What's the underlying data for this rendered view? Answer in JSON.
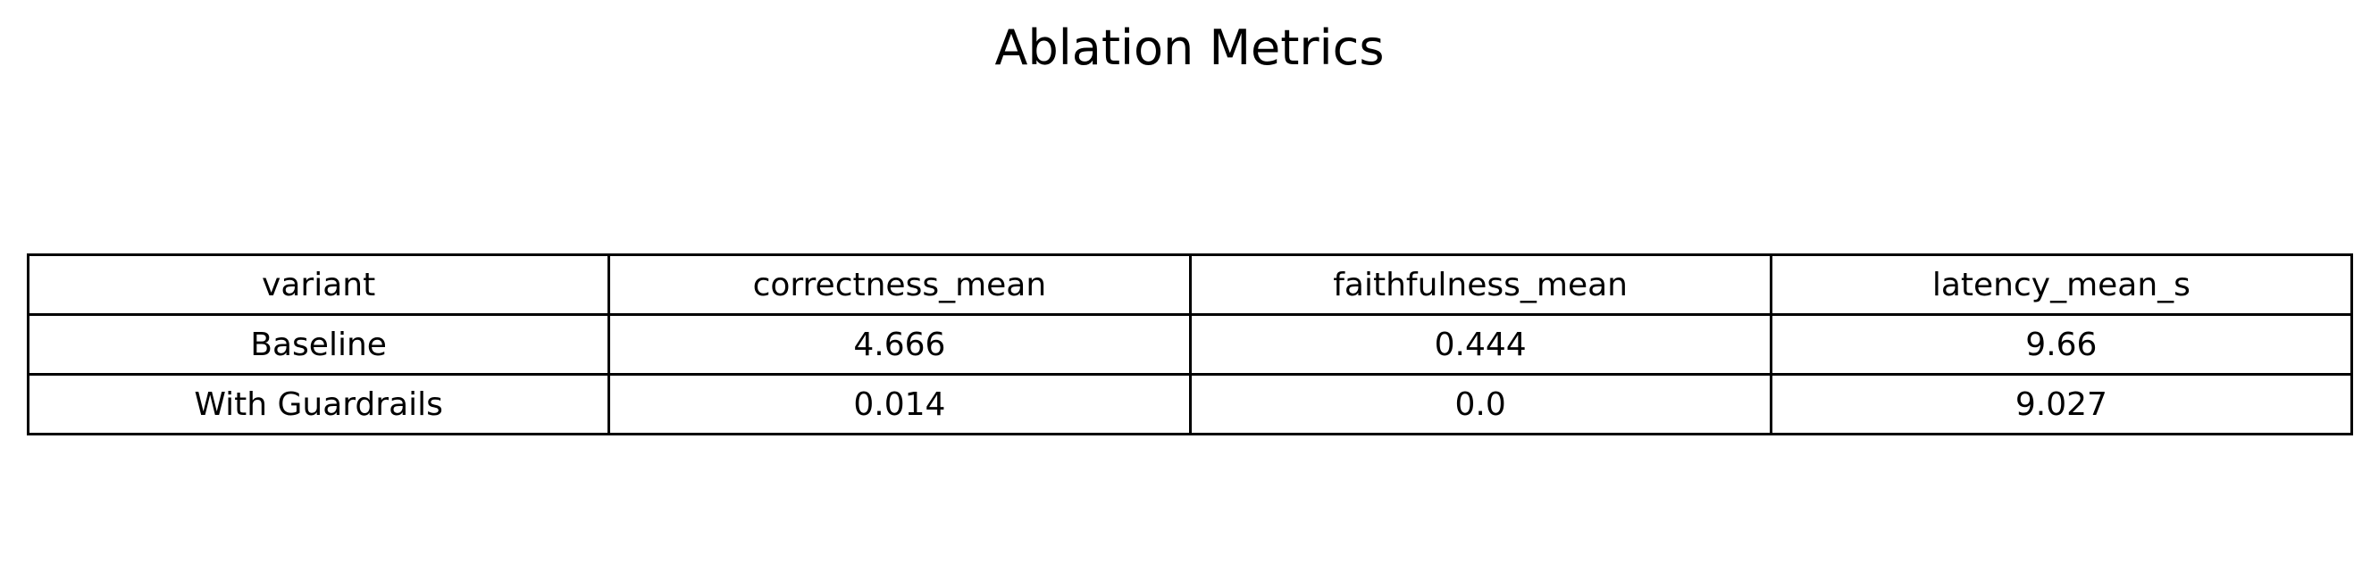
{
  "chart_data": {
    "type": "table",
    "title": "Ablation Metrics",
    "columns": [
      "variant",
      "correctness_mean",
      "faithfulness_mean",
      "latency_mean_s"
    ],
    "rows": [
      [
        "Baseline",
        "4.666",
        "0.444",
        "9.66"
      ],
      [
        "With Guardrails",
        "0.014",
        "0.0",
        "9.027"
      ]
    ]
  }
}
